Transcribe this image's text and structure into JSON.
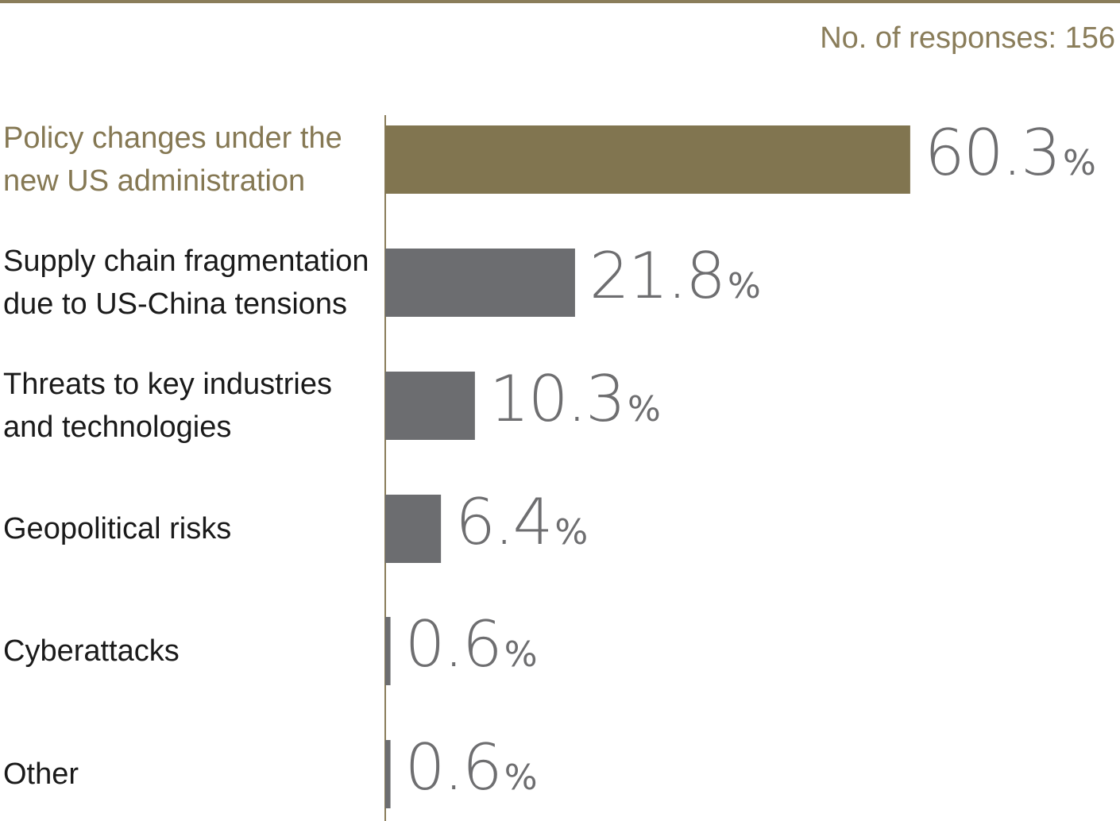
{
  "header": {
    "responses_text": "No. of responses: 156"
  },
  "colors": {
    "accent": "#817550",
    "bar": "#6c6d70",
    "rule": "#8a7d5a",
    "axis": "#8a7d5a",
    "value_text": "#6e6e70",
    "label_text": "#1a1a1a",
    "highlight_label": "#857853"
  },
  "chart_data": {
    "type": "bar",
    "orientation": "horizontal",
    "categories": [
      "Policy changes under the new US administration",
      "Supply chain fragmentation due to US-China tensions",
      "Threats to key industries and technologies",
      "Geopolitical risks",
      "Cyberattacks",
      "Other"
    ],
    "category_lines": [
      [
        "Policy changes under the",
        "new US administration"
      ],
      [
        "Supply chain fragmentation",
        "due to US-China tensions"
      ],
      [
        "Threats to key industries",
        "and technologies"
      ],
      [
        "Geopolitical risks"
      ],
      [
        "Cyberattacks"
      ],
      [
        "Other"
      ]
    ],
    "values": [
      60.3,
      21.8,
      10.3,
      6.4,
      0.6,
      0.6
    ],
    "value_labels": [
      "60.3",
      "21.8",
      "10.3",
      "6.4",
      "0.6",
      "0.6"
    ],
    "unit": "%",
    "highlight_index": 0
  }
}
